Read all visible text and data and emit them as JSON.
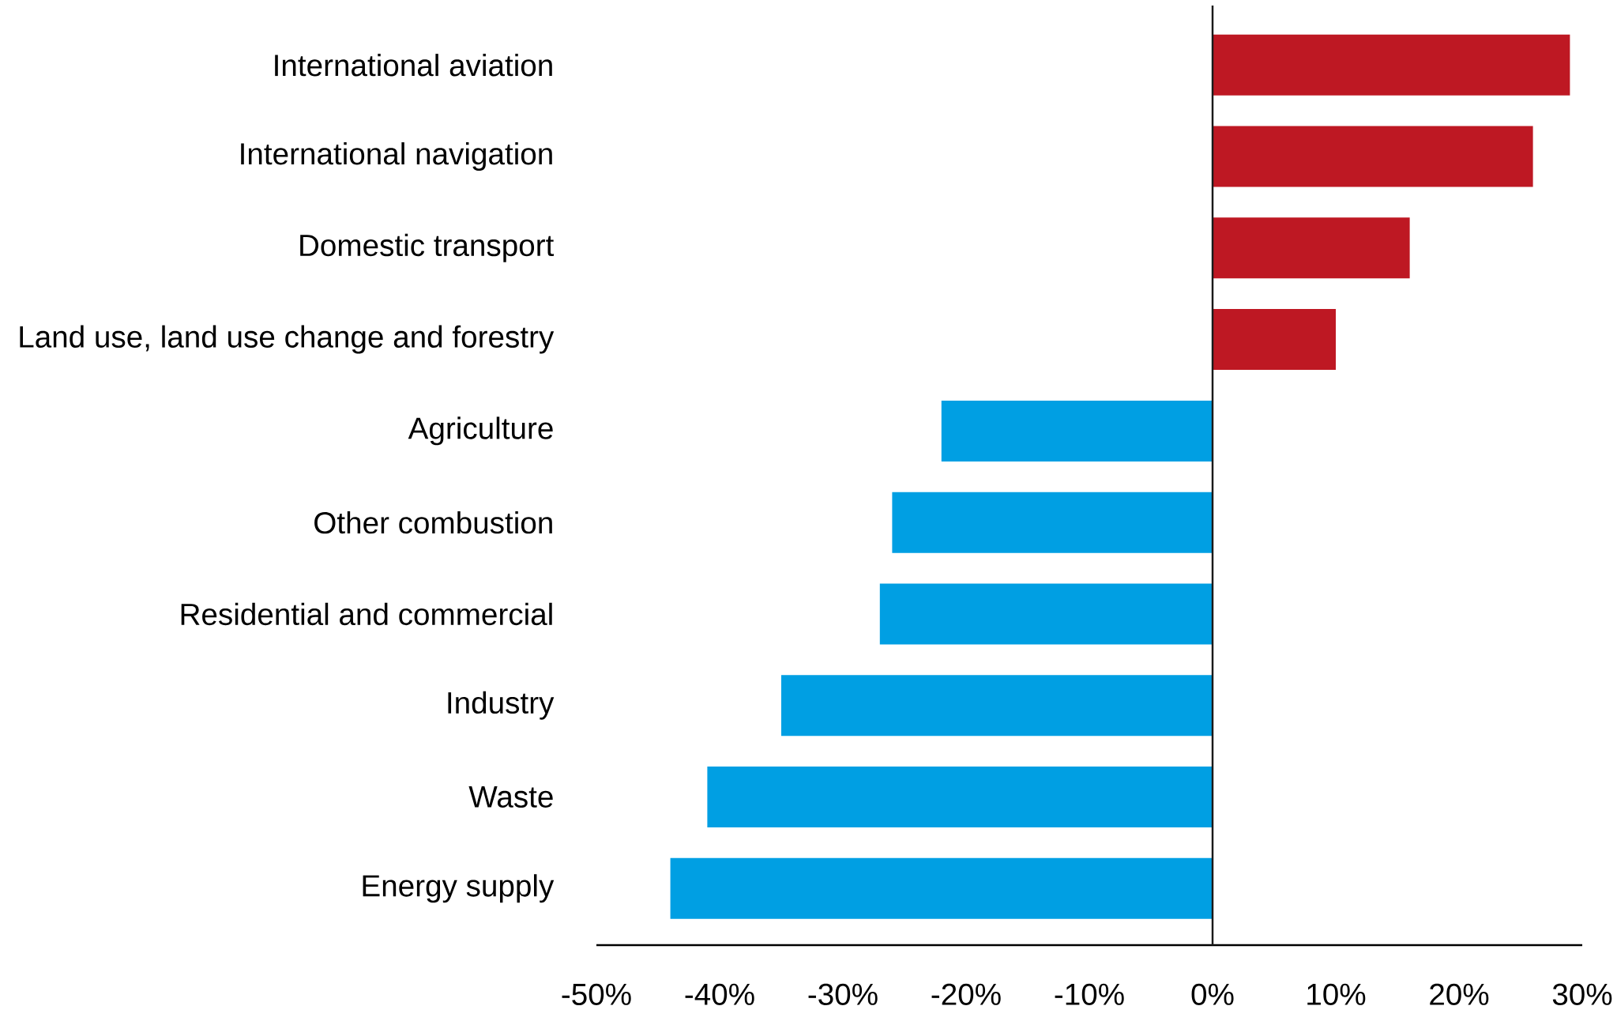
{
  "chart_data": {
    "type": "bar",
    "orientation": "horizontal",
    "categories": [
      "International aviation",
      "International navigation",
      "Domestic transport",
      "Land use, land use change and forestry",
      "Agriculture",
      "Other combustion",
      "Residential and commercial",
      "Industry",
      "Waste",
      "Energy supply"
    ],
    "values": [
      29,
      26,
      16,
      10,
      -22,
      -26,
      -27,
      -35,
      -41,
      -44
    ],
    "colors": [
      "#be1823",
      "#be1823",
      "#be1823",
      "#be1823",
      "#009fe3",
      "#009fe3",
      "#009fe3",
      "#009fe3",
      "#009fe3",
      "#009fe3"
    ],
    "xlim": [
      -50,
      30
    ],
    "xticks": [
      {
        "value": -50,
        "label": "-50%"
      },
      {
        "value": -40,
        "label": "-40%"
      },
      {
        "value": -30,
        "label": "-30%"
      },
      {
        "value": -20,
        "label": "-20%"
      },
      {
        "value": -10,
        "label": "-10%"
      },
      {
        "value": 0,
        "label": "0%"
      },
      {
        "value": 10,
        "label": "10%"
      },
      {
        "value": 20,
        "label": "20%"
      },
      {
        "value": 30,
        "label": "30%"
      }
    ],
    "ref_lines": [
      {
        "axis": "x",
        "value": 0,
        "color": "#1a1a1a"
      }
    ]
  }
}
